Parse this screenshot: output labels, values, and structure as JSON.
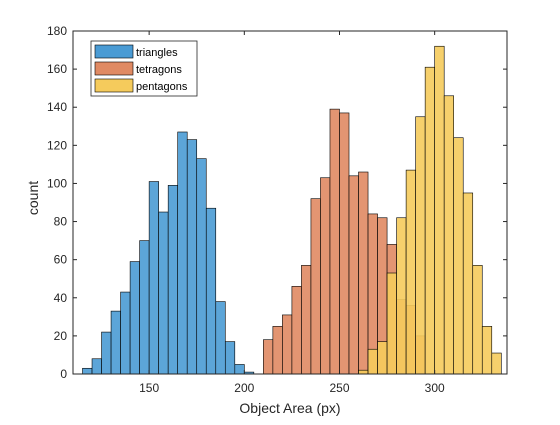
{
  "chart_data": {
    "type": "bar",
    "subtype": "histogram",
    "title": "",
    "xlabel": "Object Area (px)",
    "ylabel": "count",
    "xlim": [
      110,
      338
    ],
    "ylim": [
      0,
      180
    ],
    "xticks": [
      150,
      200,
      250,
      300
    ],
    "yticks": [
      0,
      20,
      40,
      60,
      80,
      100,
      120,
      140,
      160,
      180
    ],
    "grid": false,
    "legend_position": "top-left",
    "bin_width": 5,
    "series": [
      {
        "name": "triangles",
        "color": "#4a9bd4",
        "bin_starts": [
          115,
          120,
          125,
          130,
          135,
          140,
          145,
          150,
          155,
          160,
          165,
          170,
          175,
          180,
          185,
          190,
          195,
          200,
          205
        ],
        "counts": [
          3,
          8,
          22,
          33,
          43,
          59,
          70,
          101,
          85,
          99,
          127,
          123,
          113,
          87,
          38,
          17,
          5,
          1,
          0
        ]
      },
      {
        "name": "tetragons",
        "color": "#e08a63",
        "bin_starts": [
          210,
          215,
          220,
          225,
          230,
          235,
          240,
          245,
          250,
          255,
          260,
          265,
          270,
          275,
          280,
          285,
          290
        ],
        "counts": [
          18,
          25,
          31,
          46,
          57,
          92,
          103,
          139,
          137,
          104,
          106,
          84,
          82,
          68,
          39,
          36,
          20
        ]
      },
      {
        "name": "pentagons",
        "color": "#f5cb5c",
        "bin_starts": [
          260,
          265,
          270,
          275,
          280,
          285,
          290,
          295,
          300,
          305,
          310,
          315,
          320,
          325,
          330
        ],
        "counts": [
          2,
          13,
          17,
          53,
          82,
          107,
          135,
          161,
          172,
          146,
          124,
          95,
          57,
          25,
          11
        ]
      }
    ]
  }
}
